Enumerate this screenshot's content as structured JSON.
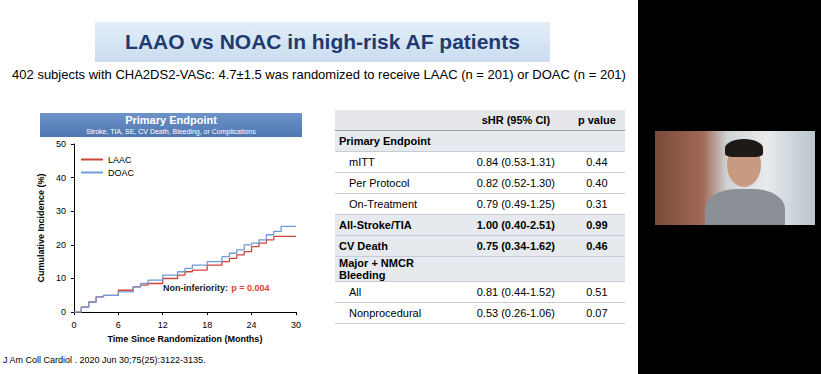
{
  "title": "LAAO vs NOAC in high-risk AF patients",
  "subtitle": "402 subjects with CHA2DS2-VASc: 4.7±1.5 was randomized to receive LAAC (n = 201) or DOAC (n = 201)",
  "citation": "J Am Coll Cardiol . 2020 Jun 30;75(25):3122-3135.",
  "chart_data": {
    "type": "step",
    "title": "Primary Endpoint",
    "subtitle": "Stroke, TIA, SE, CV Death, Bleeding, or Complications",
    "x_label": "Time Since Randomization (Months)",
    "y_label": "Cumulative Incidence (%)",
    "x": [
      0,
      1,
      2,
      3,
      4,
      6,
      8,
      9,
      10,
      12,
      14,
      15,
      16,
      18,
      20,
      21,
      22,
      23,
      24,
      25,
      26,
      27,
      28,
      30
    ],
    "series": [
      {
        "name": "LAAC",
        "color": "#d0453a",
        "values": [
          0,
          1.5,
          3,
          4.5,
          5,
          6.5,
          7.5,
          8,
          8.5,
          10,
          11,
          12,
          12.5,
          14,
          15,
          16,
          17,
          18,
          19.5,
          20.5,
          21.5,
          22.5,
          22.5,
          22.5
        ]
      },
      {
        "name": "DOAC",
        "color": "#6f9bd6",
        "values": [
          0,
          1.5,
          3,
          4.5,
          5,
          6,
          7.5,
          8.5,
          9.5,
          11,
          12,
          13,
          14,
          15,
          16.5,
          17.5,
          18.5,
          20,
          20.5,
          21.5,
          23,
          24,
          25.5,
          25.5
        ]
      }
    ],
    "xlim": [
      0,
      30
    ],
    "xticks": [
      0,
      6,
      12,
      18,
      24,
      30
    ],
    "ylim": [
      0,
      50
    ],
    "yticks": [
      0,
      10,
      20,
      30,
      40,
      50
    ],
    "grid": false,
    "legend": "upper left",
    "annotation": [
      "Non-inferiority:",
      "p = 0.004"
    ]
  },
  "table": {
    "columns": [
      "sHR (95% CI)",
      "p value"
    ],
    "sections": [
      {
        "title": "Primary Endpoint",
        "rows": [
          {
            "label": "mITT",
            "shr": "0.84 (0.53-1.31)",
            "p": "0.44"
          },
          {
            "label": "Per Protocol",
            "shr": "0.82 (0.52-1.30)",
            "p": "0.40"
          },
          {
            "label": "On-Treatment",
            "shr": "0.79 (0.49-1.25)",
            "p": "0.31"
          }
        ]
      },
      {
        "title": "All-Stroke/TIA",
        "shr": "1.00 (0.40-2.51)",
        "p": "0.99"
      },
      {
        "title": "CV Death",
        "shr": "0.75 (0.34-1.62)",
        "p": "0.46"
      },
      {
        "title": "Major + NMCR Bleeding",
        "rows": [
          {
            "label": "All",
            "shr": "0.81 (0.44-1.52)",
            "p": "0.51"
          },
          {
            "label": "Nonprocedural",
            "shr": "0.53 (0.26-1.06)",
            "p": "0.07"
          }
        ]
      }
    ]
  }
}
